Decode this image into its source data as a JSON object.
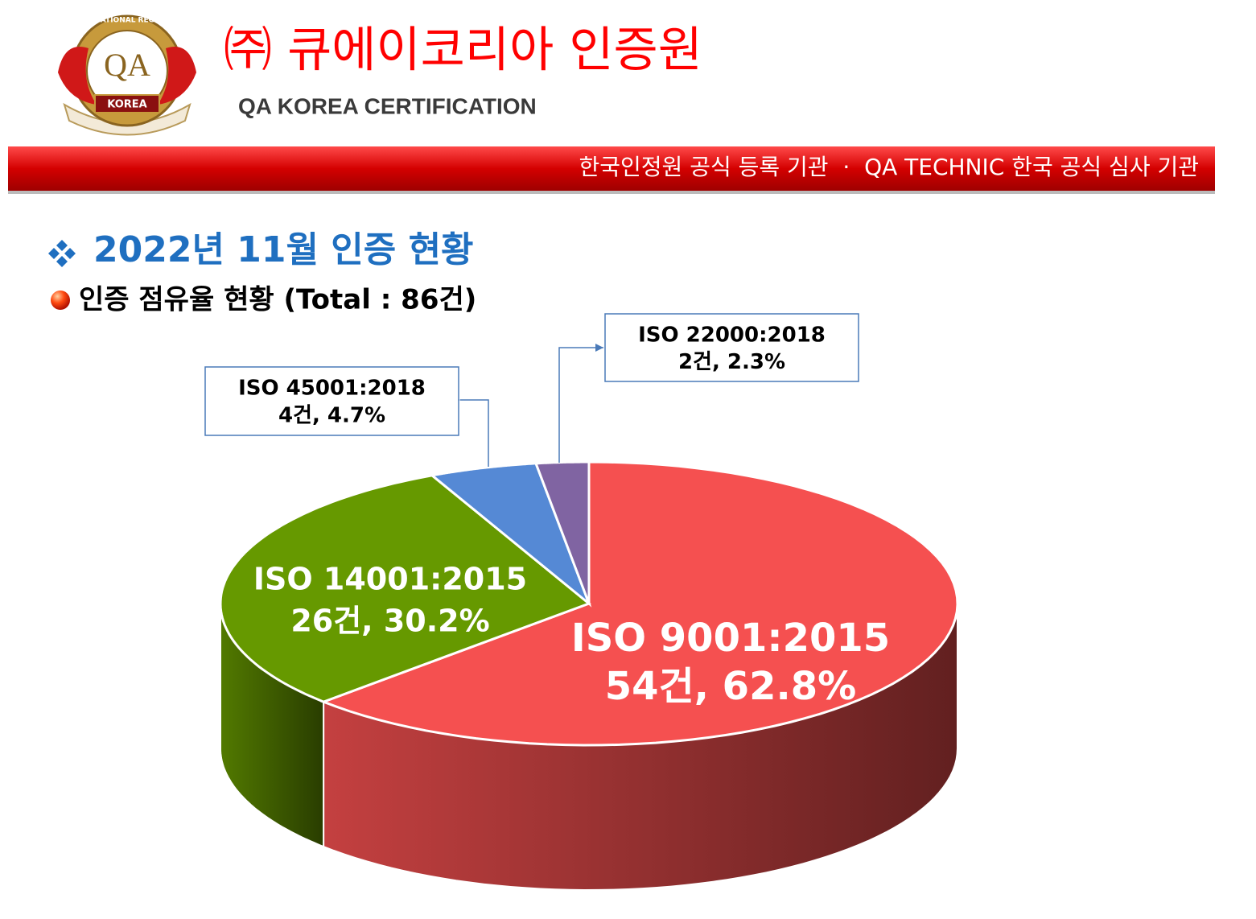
{
  "header": {
    "logo": {
      "ring_text": "INTERNATIONAL REGISTRAR",
      "monogram": "QA",
      "banner": "KOREA"
    },
    "title": "㈜ 큐에이코리아 인증원",
    "subtitle": "QA KOREA CERTIFICATION",
    "tagline": "한국인정원 공식 등록 기관  ·  QA TECHNIC 한국 공식 심사 기관"
  },
  "section": {
    "heading": "2022년 11월 인증 현황",
    "subheading": "인증 점유율 현황 (Total : 86건)"
  },
  "chart_data": {
    "type": "pie",
    "categories": [
      "ISO 9001:2015",
      "ISO 14001:2015",
      "ISO 45001:2018",
      "ISO 22000:2018"
    ],
    "values": [
      62.8,
      30.2,
      4.7,
      2.3
    ],
    "value_labels": [
      "54건, 62.8%",
      "26건, 30.2%",
      "4건, 4.7%",
      "2건, 2.3%"
    ],
    "colors": [
      "#f55050",
      "#669900",
      "#5589d5",
      "#8064a2"
    ]
  }
}
